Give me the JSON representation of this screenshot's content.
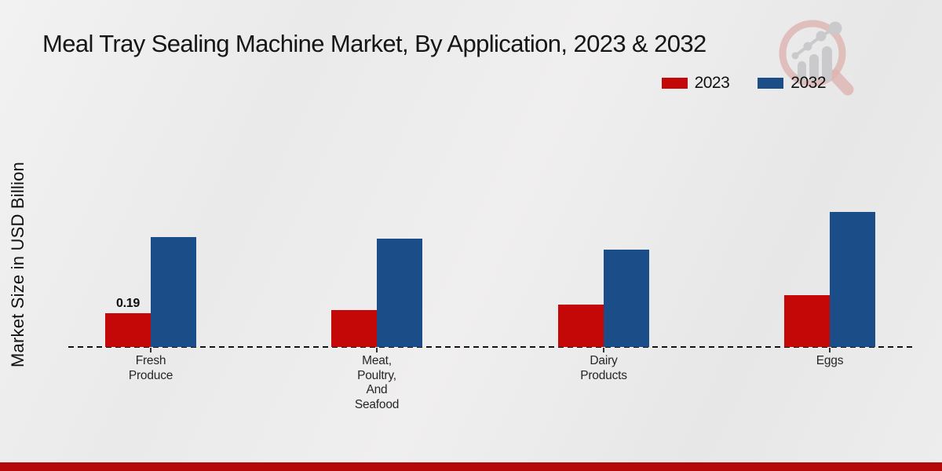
{
  "title": "Meal Tray Sealing Machine Market, By Application, 2023 & 2032",
  "y_axis_label": "Market Size in USD Billion",
  "legend": {
    "items": [
      {
        "label": "2023",
        "color": "#c40808"
      },
      {
        "label": "2032",
        "color": "#1b4e89"
      }
    ]
  },
  "watermark_icon": "magnifier-bar-chart-logo-icon",
  "footer": {
    "accent_color": "#b50808"
  },
  "chart_data": {
    "type": "bar",
    "title": "Meal Tray Sealing Machine Market, By Application, 2023 & 2032",
    "xlabel": "",
    "ylabel": "Market Size in USD Billion",
    "categories": [
      "Fresh Produce",
      "Meat, Poultry, And Seafood",
      "Dairy Products",
      "Eggs"
    ],
    "categories_multiline": [
      [
        "Fresh",
        "Produce"
      ],
      [
        "Meat,",
        "Poultry,",
        "And",
        "Seafood"
      ],
      [
        "Dairy",
        "Products"
      ],
      [
        "Eggs"
      ]
    ],
    "series": [
      {
        "name": "2023",
        "color": "#c40808",
        "values": [
          0.19,
          0.21,
          0.24,
          0.29
        ]
      },
      {
        "name": "2032",
        "color": "#1b4e89",
        "values": [
          0.62,
          0.61,
          0.55,
          0.76
        ]
      }
    ],
    "data_labels": [
      {
        "series_index": 0,
        "category_index": 0,
        "text": "0.19"
      }
    ],
    "ylim": [
      0,
      0.8
    ],
    "grid": false,
    "legend_position": "top-right",
    "baseline_style": "dashed-black",
    "unit": "USD Billion"
  }
}
